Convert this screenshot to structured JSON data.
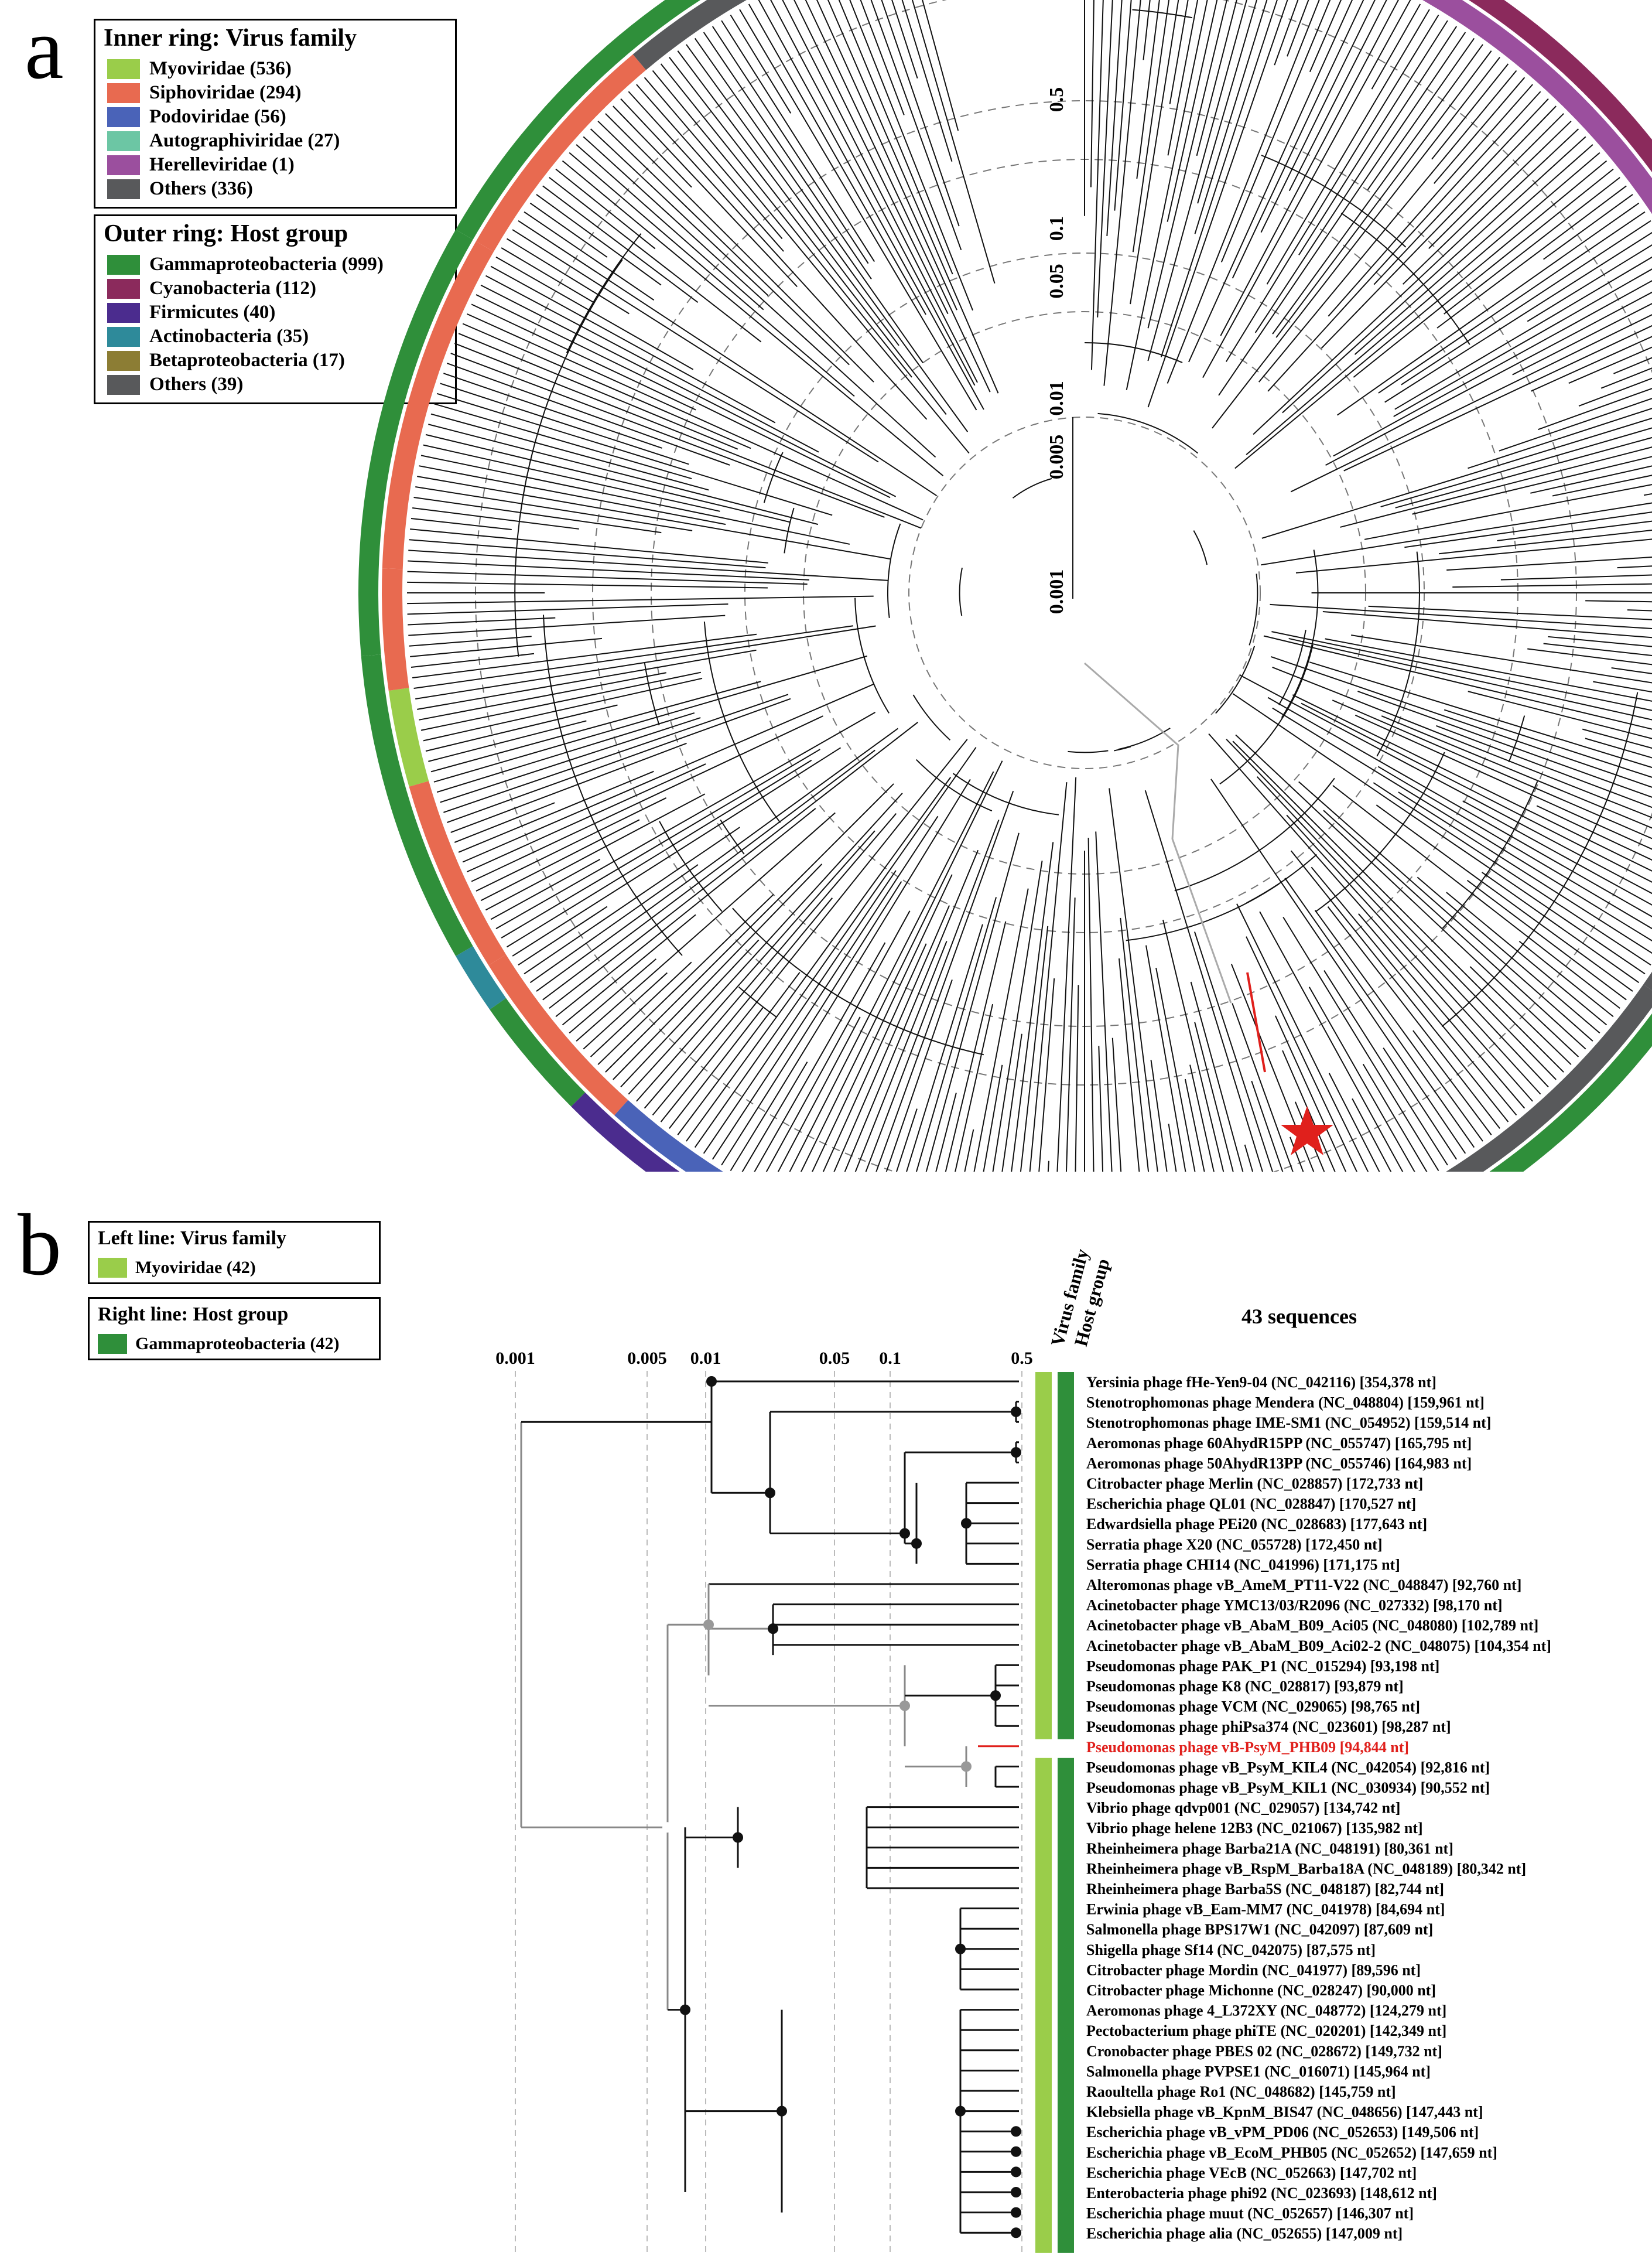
{
  "panel_a": {
    "label": "a",
    "legend_inner": {
      "title": "Inner ring: Virus family",
      "items": [
        {
          "label": "Myoviridae (536)",
          "color": "#9acd4a"
        },
        {
          "label": "Siphoviridae (294)",
          "color": "#e86a50"
        },
        {
          "label": "Podoviridae (56)",
          "color": "#4a63b8"
        },
        {
          "label": "Autographiviridae (27)",
          "color": "#6cc6a4"
        },
        {
          "label": "Herelleviridae (1)",
          "color": "#9b4f9e"
        },
        {
          "label": "Others (336)",
          "color": "#58595b"
        }
      ]
    },
    "legend_outer": {
      "title": "Outer ring: Host group",
      "items": [
        {
          "label": "Gammaproteobacteria (999)",
          "color": "#2f8f3a"
        },
        {
          "label": "Cyanobacteria (112)",
          "color": "#8b2a5c"
        },
        {
          "label": "Firmicutes (40)",
          "color": "#4b2c8e"
        },
        {
          "label": "Actinobacteria (35)",
          "color": "#2e8a9a"
        },
        {
          "label": "Betaproteobacteria (17)",
          "color": "#8c7d34"
        },
        {
          "label": "Others (39)",
          "color": "#58595b"
        }
      ]
    },
    "scale_labels": [
      "0.5",
      "0.1",
      "0.05",
      "0.01",
      "0.005",
      "0.001"
    ]
  },
  "panel_b": {
    "label": "b",
    "legend_left": {
      "title": "Left line: Virus family",
      "item": "Myoviridae (42)",
      "color": "#9acd4a"
    },
    "legend_right": {
      "title": "Right line: Host group",
      "item": "Gammaproteobacteria (42)",
      "color": "#2f8f3a"
    },
    "col_header_1": "Virus family",
    "col_header_2": "Host group",
    "count_label": "43 sequences",
    "scale_labels": [
      "0.001",
      "0.005",
      "0.01",
      "0.05",
      "0.1",
      "0.5"
    ],
    "highlight_index": 18,
    "highlight_color": "#e0201c",
    "taxa": [
      "Yersinia phage fHe-Yen9-04 (NC_042116) [354,378 nt]",
      "Stenotrophomonas phage Mendera (NC_048804) [159,961 nt]",
      "Stenotrophomonas phage IME-SM1 (NC_054952) [159,514 nt]",
      "Aeromonas phage 60AhydR15PP (NC_055747) [165,795 nt]",
      "Aeromonas phage 50AhydR13PP (NC_055746) [164,983 nt]",
      "Citrobacter phage Merlin (NC_028857) [172,733 nt]",
      "Escherichia phage QL01 (NC_028847) [170,527 nt]",
      "Edwardsiella phage PEi20 (NC_028683) [177,643 nt]",
      "Serratia phage X20 (NC_055728) [172,450 nt]",
      "Serratia phage CHI14 (NC_041996) [171,175 nt]",
      "Alteromonas phage vB_AmeM_PT11-V22 (NC_048847) [92,760 nt]",
      "Acinetobacter phage YMC13/03/R2096 (NC_027332) [98,170 nt]",
      "Acinetobacter phage vB_AbaM_B09_Aci05 (NC_048080) [102,789 nt]",
      "Acinetobacter phage vB_AbaM_B09_Aci02-2 (NC_048075) [104,354 nt]",
      "Pseudomonas phage PAK_P1 (NC_015294) [93,198 nt]",
      "Pseudomonas phage K8 (NC_028817) [93,879 nt]",
      "Pseudomonas phage VCM (NC_029065) [98,765 nt]",
      "Pseudomonas phage phiPsa374 (NC_023601) [98,287 nt]",
      "Pseudomonas phage vB-PsyM_PHB09 [94,844 nt]",
      "Pseudomonas phage vB_PsyM_KIL4 (NC_042054) [92,816 nt]",
      "Pseudomonas phage vB_PsyM_KIL1 (NC_030934) [90,552 nt]",
      "Vibrio phage qdvp001 (NC_029057) [134,742 nt]",
      "Vibrio phage helene 12B3 (NC_021067) [135,982 nt]",
      "Rheinheimera phage Barba21A (NC_048191) [80,361 nt]",
      "Rheinheimera phage vB_RspM_Barba18A (NC_048189) [80,342 nt]",
      "Rheinheimera phage Barba5S (NC_048187) [82,744 nt]",
      "Erwinia phage vB_Eam-MM7 (NC_041978) [84,694 nt]",
      "Salmonella phage BPS17W1 (NC_042097) [87,609 nt]",
      "Shigella phage Sf14 (NC_042075) [87,575 nt]",
      "Citrobacter phage Mordin (NC_041977) [89,596 nt]",
      "Citrobacter phage Michonne (NC_028247) [90,000 nt]",
      "Aeromonas phage 4_L372XY (NC_048772) [124,279 nt]",
      "Pectobacterium phage phiTE (NC_020201) [142,349 nt]",
      "Cronobacter phage PBES 02 (NC_028672) [149,732 nt]",
      "Salmonella phage PVPSE1 (NC_016071) [145,964 nt]",
      "Raoultella phage Ro1 (NC_048682) [145,759 nt]",
      "Klebsiella phage vB_KpnM_BIS47 (NC_048656) [147,443 nt]",
      "Escherichia phage vB_vPM_PD06 (NC_052653) [149,506 nt]",
      "Escherichia phage vB_EcoM_PHB05 (NC_052652) [147,659 nt]",
      "Escherichia phage VEcB (NC_052663) [147,702 nt]",
      "Enterobacteria phage phi92 (NC_023693) [148,612 nt]",
      "Escherichia phage muut (NC_052657) [146,307 nt]",
      "Escherichia phage alia (NC_052655) [147,009 nt]"
    ]
  }
}
